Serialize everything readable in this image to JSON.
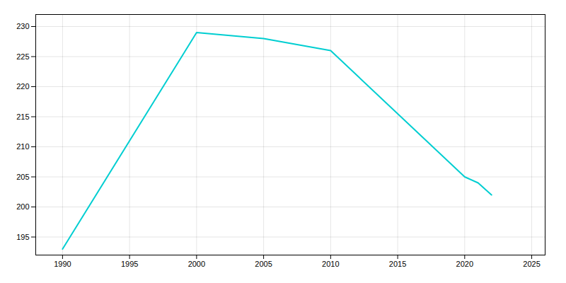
{
  "chart_data": {
    "type": "line",
    "x": [
      1990,
      2000,
      2005,
      2010,
      2020,
      2021,
      2022
    ],
    "values": [
      193,
      229,
      228,
      226,
      205,
      204,
      202
    ],
    "color": "#00CED1",
    "xlim": [
      1988,
      2026
    ],
    "ylim": [
      192,
      232
    ],
    "xticks": [
      1990,
      1995,
      2000,
      2005,
      2010,
      2015,
      2020,
      2025
    ],
    "yticks": [
      195,
      200,
      205,
      210,
      215,
      220,
      225,
      230
    ],
    "grid": true
  }
}
